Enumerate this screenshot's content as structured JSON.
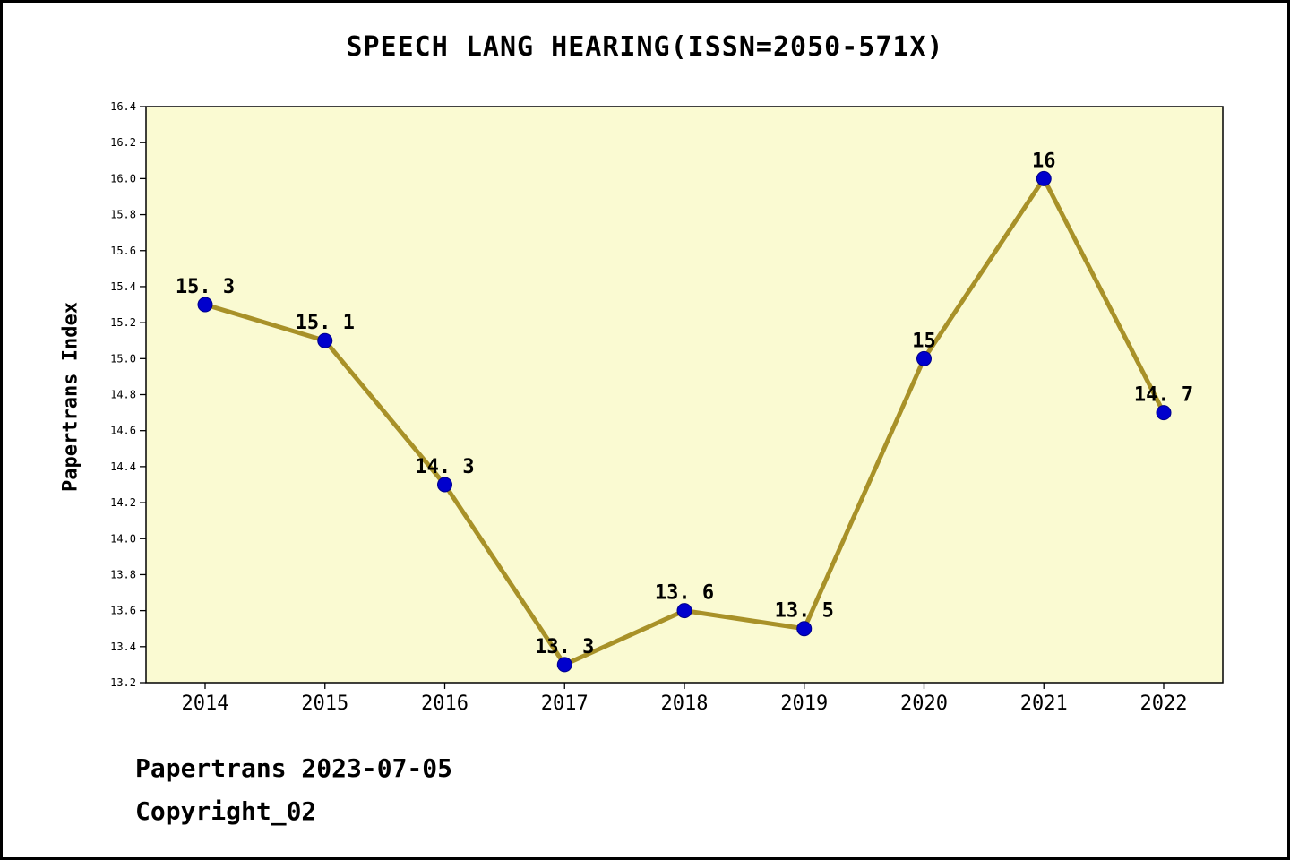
{
  "footer": {
    "line1": "Papertrans 2023-07-05",
    "line2": "Copyright_02"
  },
  "chart_data": {
    "type": "line",
    "title": "SPEECH LANG HEARING(ISSN=2050-571X)",
    "xlabel": "",
    "ylabel": "Papertrans Index",
    "categories": [
      "2014",
      "2015",
      "2016",
      "2017",
      "2018",
      "2019",
      "2020",
      "2021",
      "2022"
    ],
    "values": [
      15.3,
      15.1,
      14.3,
      13.3,
      13.6,
      13.5,
      15,
      16,
      14.7
    ],
    "point_labels": [
      "15. 3",
      "15. 1",
      "14. 3",
      "13. 3",
      "13. 6",
      "13. 5",
      "15",
      "16",
      "14. 7"
    ],
    "ylim": [
      13.2,
      16.4
    ],
    "ytick_step": 0.2,
    "grid": false,
    "legend": "none",
    "colors": {
      "plot_bg": "#fafad2",
      "line": "#a89128",
      "marker": "#0000cd",
      "marker_edge": "#00008b",
      "axis": "#000000"
    }
  }
}
